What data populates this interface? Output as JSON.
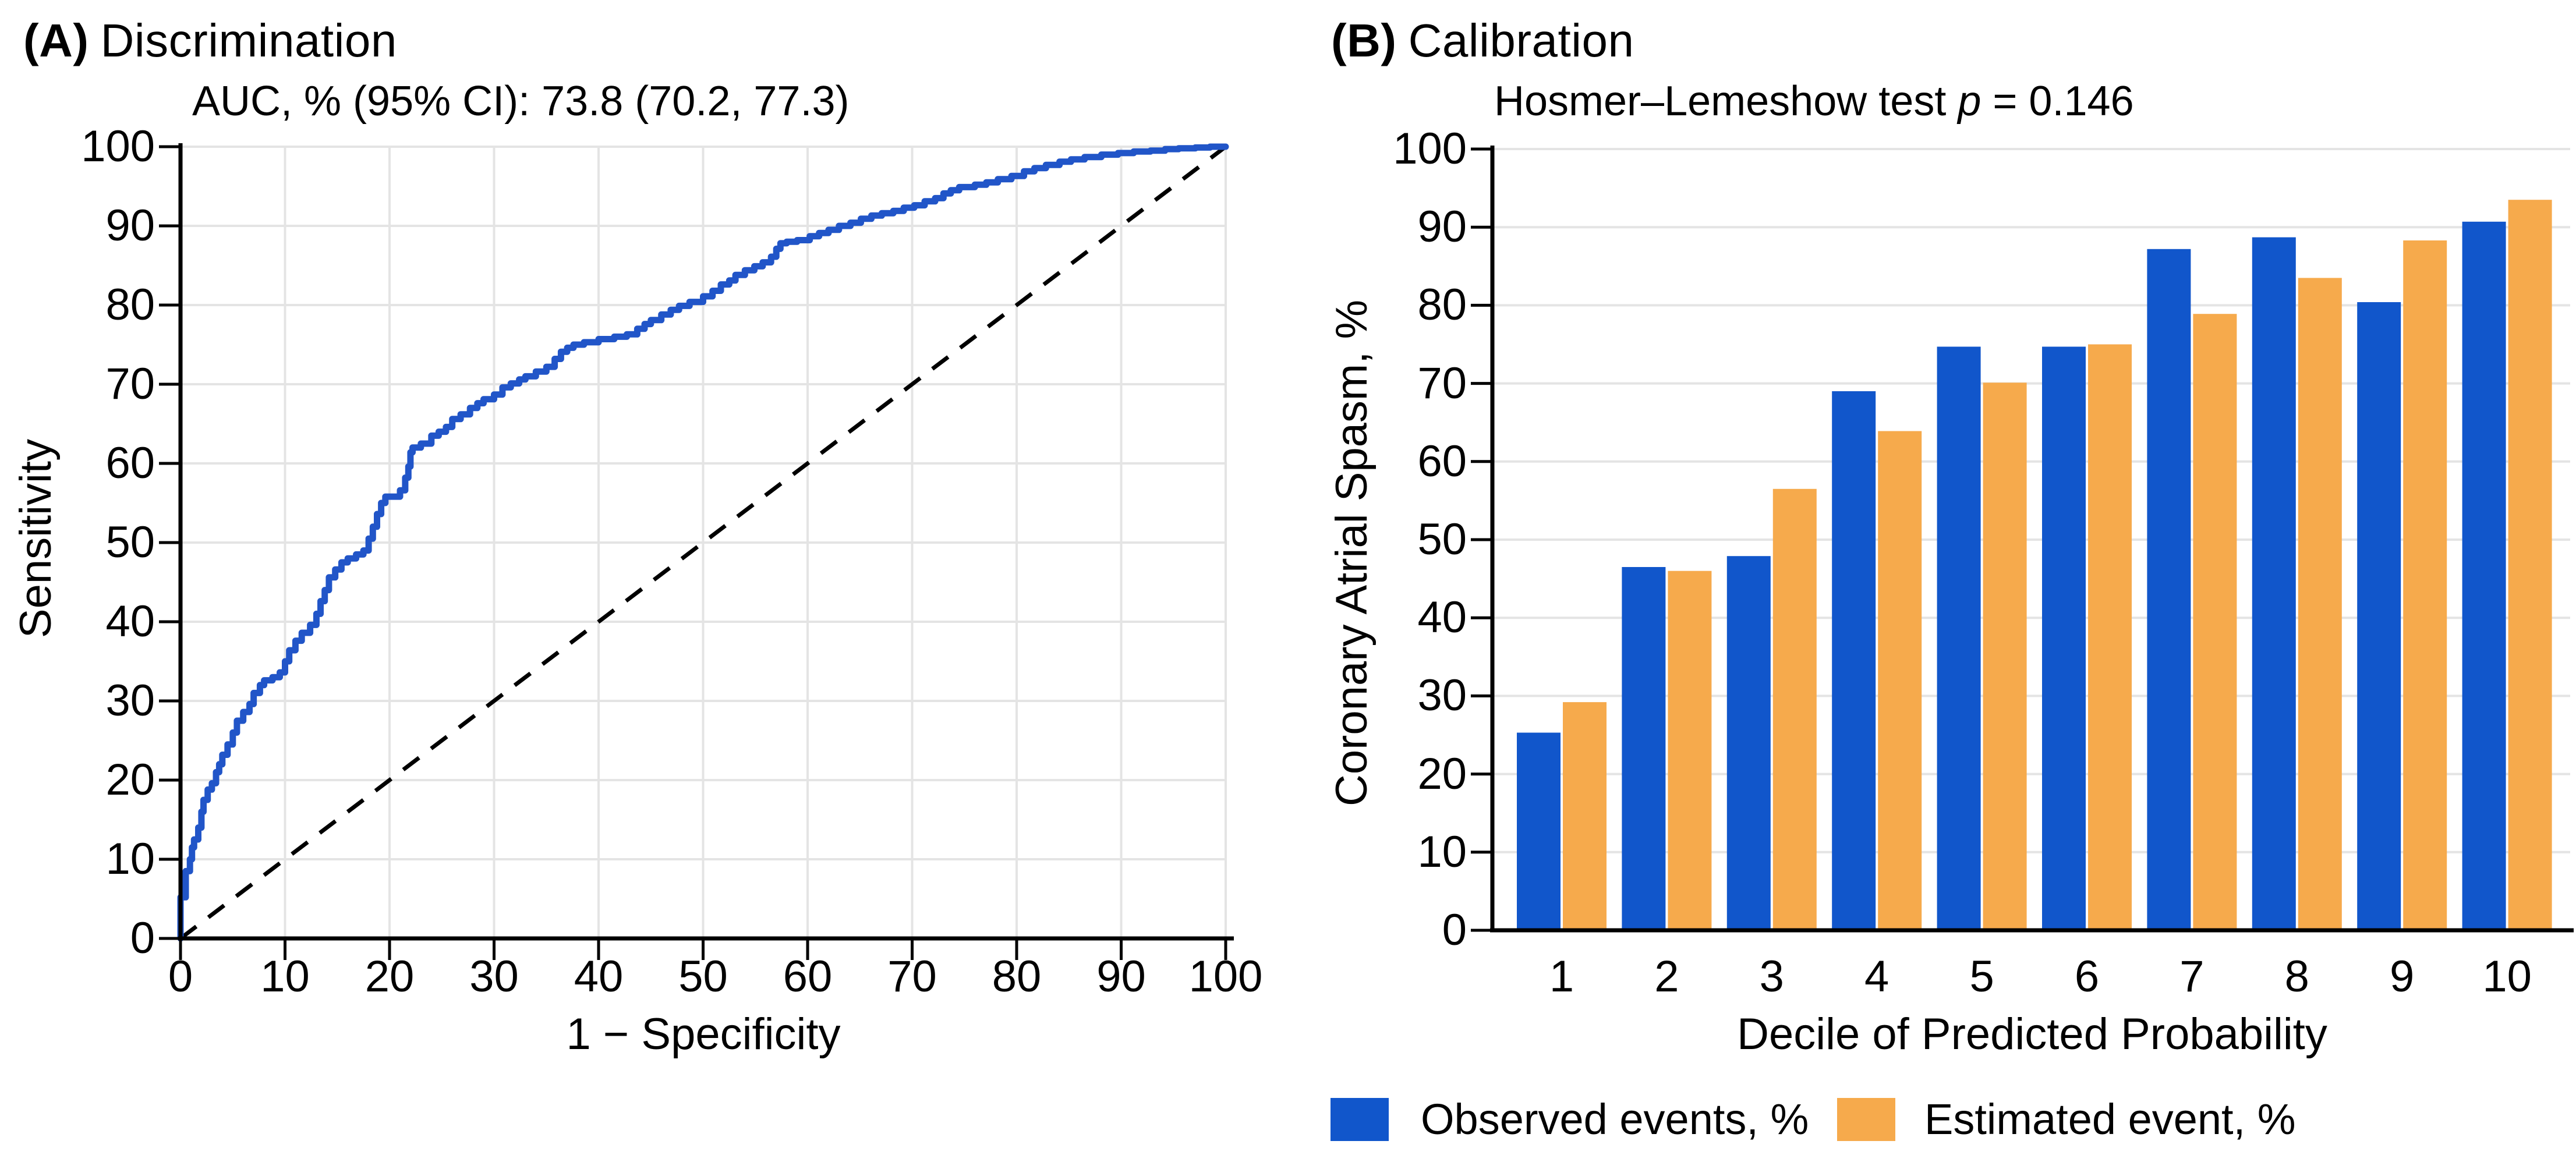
{
  "figure": {
    "panel_a": {
      "title_prefix": "(A)",
      "title": "Discrimination",
      "subtitle": "AUC, % (95% CI): 73.8 (70.2, 77.3)",
      "xlabel": "1 − Specificity",
      "ylabel": "Sensitivity",
      "x_ticks": [
        "0",
        "10",
        "20",
        "30",
        "40",
        "50",
        "60",
        "70",
        "80",
        "90",
        "100"
      ],
      "y_ticks": [
        "0",
        "10",
        "20",
        "30",
        "40",
        "50",
        "60",
        "70",
        "80",
        "90",
        "100"
      ]
    },
    "panel_b": {
      "title_prefix": "(B)",
      "title": "Calibration",
      "subtitle_text": "Hosmer–Lemeshow test ",
      "subtitle_stat": "p",
      "subtitle_value": " = 0.146",
      "xlabel": "Decile of Predicted Probability",
      "ylabel": "Coronary Atrial Spasm, %",
      "x_ticks": [
        "1",
        "2",
        "3",
        "4",
        "5",
        "6",
        "7",
        "8",
        "9",
        "10"
      ],
      "y_ticks": [
        "0",
        "10",
        "20",
        "30",
        "40",
        "50",
        "60",
        "70",
        "80",
        "90",
        "100"
      ]
    },
    "legend": [
      {
        "label": "Observed events, %",
        "color": "#1156CB"
      },
      {
        "label": "Estimated event, %",
        "color": "#F6AA4C"
      }
    ]
  },
  "colors": {
    "roc_line": "#2155C8",
    "observed_bar": "#1156CB",
    "estimated_bar": "#F6AA4C",
    "gridline": "#E4E4E4",
    "axis": "#000000",
    "reference_line": "#000000",
    "background": "#FFFFFF",
    "text": "#000000"
  },
  "chart_data": [
    {
      "type": "line",
      "title": "(A) Discrimination",
      "subtitle": "AUC, % (95% CI): 73.8 (70.2, 77.3)",
      "auc_percent": 73.8,
      "auc_ci_95": [
        70.2,
        77.3
      ],
      "xlabel": "1 − Specificity",
      "ylabel": "Sensitivity",
      "xlim": [
        0,
        100
      ],
      "ylim": [
        0,
        100
      ],
      "grid": true,
      "series": [
        {
          "name": "ROC curve",
          "style": "step",
          "color": "#2155C8",
          "points": [
            [
              0,
              0
            ],
            [
              0,
              4.8
            ],
            [
              0.5,
              5.2
            ],
            [
              0.5,
              7.5
            ],
            [
              0.9,
              8.5
            ],
            [
              1.1,
              10
            ],
            [
              1.3,
              11.5
            ],
            [
              1.7,
              12.5
            ],
            [
              2,
              14
            ],
            [
              2.2,
              16
            ],
            [
              2.6,
              17.5
            ],
            [
              3,
              18.8
            ],
            [
              3.4,
              19.6
            ],
            [
              3.7,
              21
            ],
            [
              4,
              22
            ],
            [
              4.5,
              23.2
            ],
            [
              5,
              24.5
            ],
            [
              5.4,
              26
            ],
            [
              6,
              27.5
            ],
            [
              6.6,
              28.6
            ],
            [
              7,
              29.6
            ],
            [
              7.6,
              31
            ],
            [
              8,
              32
            ],
            [
              8.8,
              32.6
            ],
            [
              9.5,
              33
            ],
            [
              10,
              33.6
            ],
            [
              10.4,
              35
            ],
            [
              11,
              36.4
            ],
            [
              11.6,
              37.6
            ],
            [
              12.4,
              38.6
            ],
            [
              13,
              39.6
            ],
            [
              13.4,
              41
            ],
            [
              13.8,
              42.6
            ],
            [
              14.2,
              44
            ],
            [
              14.8,
              45.6
            ],
            [
              15.4,
              46.6
            ],
            [
              16,
              47.5
            ],
            [
              16.8,
              48
            ],
            [
              17.5,
              48.5
            ],
            [
              18,
              49
            ],
            [
              18.4,
              50.5
            ],
            [
              18.8,
              52
            ],
            [
              19.2,
              53.6
            ],
            [
              19.6,
              55
            ],
            [
              20,
              55.8
            ],
            [
              21,
              55.8
            ],
            [
              21.5,
              56.6
            ],
            [
              21.8,
              58.2
            ],
            [
              22,
              59.6
            ],
            [
              22.2,
              61.4
            ],
            [
              23,
              62
            ],
            [
              24,
              62.5
            ],
            [
              24.7,
              63.5
            ],
            [
              25.4,
              64
            ],
            [
              26,
              64.6
            ],
            [
              26.8,
              65.6
            ],
            [
              27.7,
              66.2
            ],
            [
              28.4,
              67
            ],
            [
              29,
              67.6
            ],
            [
              30,
              68.1
            ],
            [
              30.8,
              68.7
            ],
            [
              31.6,
              69.6
            ],
            [
              32.4,
              70.1
            ],
            [
              33,
              70.6
            ],
            [
              34,
              71
            ],
            [
              35,
              71.6
            ],
            [
              35.8,
              72.2
            ],
            [
              36.4,
              73.2
            ],
            [
              37,
              74.1
            ],
            [
              37.6,
              74.6
            ],
            [
              38.6,
              75
            ],
            [
              40,
              75.3
            ],
            [
              41.5,
              75.7
            ],
            [
              42.7,
              76
            ],
            [
              43.7,
              76.3
            ],
            [
              44.4,
              77
            ],
            [
              45,
              77.6
            ],
            [
              46,
              78.1
            ],
            [
              46.9,
              78.8
            ],
            [
              47.7,
              79.4
            ],
            [
              48.7,
              79.9
            ],
            [
              50,
              80.4
            ],
            [
              50.9,
              81.1
            ],
            [
              51.7,
              81.8
            ],
            [
              52.5,
              82.6
            ],
            [
              53.1,
              83.1
            ],
            [
              54,
              83.8
            ],
            [
              54.9,
              84.4
            ],
            [
              55.7,
              84.9
            ],
            [
              56.5,
              85.4
            ],
            [
              57,
              86.1
            ],
            [
              57.4,
              87.1
            ],
            [
              58,
              87.8
            ],
            [
              59,
              88
            ],
            [
              60.2,
              88.2
            ],
            [
              61.1,
              88.7
            ],
            [
              62,
              89.1
            ],
            [
              63,
              89.5
            ],
            [
              64.1,
              90
            ],
            [
              65.1,
              90.4
            ],
            [
              66.1,
              90.9
            ],
            [
              67.1,
              91.3
            ],
            [
              68.2,
              91.6
            ],
            [
              69.2,
              91.9
            ],
            [
              70.2,
              92.3
            ],
            [
              71.2,
              92.6
            ],
            [
              72.2,
              93.1
            ],
            [
              73,
              93.5
            ],
            [
              73.7,
              94.1
            ],
            [
              74.5,
              94.5
            ],
            [
              76,
              94.9
            ],
            [
              77.1,
              95.2
            ],
            [
              78.2,
              95.5
            ],
            [
              79.5,
              95.9
            ],
            [
              80.7,
              96.3
            ],
            [
              81.7,
              96.9
            ],
            [
              82.8,
              97.3
            ],
            [
              84.1,
              97.7
            ],
            [
              85.2,
              98.1
            ],
            [
              86.5,
              98.4
            ],
            [
              88.1,
              98.7
            ],
            [
              89.7,
              99
            ],
            [
              91.2,
              99.2
            ],
            [
              92.8,
              99.4
            ],
            [
              94.2,
              99.5
            ],
            [
              95.5,
              99.7
            ],
            [
              97.1,
              99.8
            ],
            [
              98.5,
              99.9
            ],
            [
              100,
              100
            ]
          ]
        },
        {
          "name": "Reference diagonal",
          "style": "dashed",
          "color": "#000000",
          "points": [
            [
              0,
              0
            ],
            [
              100,
              100
            ]
          ]
        }
      ]
    },
    {
      "type": "bar",
      "title": "(B) Calibration",
      "subtitle": "Hosmer–Lemeshow test p = 0.146",
      "hosmer_lemeshow_p": 0.146,
      "xlabel": "Decile of Predicted Probability",
      "ylabel": "Coronary Atrial Spasm, %",
      "ylim": [
        0,
        100
      ],
      "grid": true,
      "legend_position": "bottom",
      "categories": [
        1,
        2,
        3,
        4,
        5,
        6,
        7,
        8,
        9,
        10
      ],
      "series": [
        {
          "name": "Observed events, %",
          "color": "#1156CB",
          "values": [
            25.3,
            46.5,
            47.9,
            69.0,
            74.7,
            74.7,
            87.2,
            88.7,
            80.4,
            90.7
          ]
        },
        {
          "name": "Estimated event, %",
          "color": "#F6AA4C",
          "values": [
            29.2,
            46.0,
            56.5,
            63.9,
            70.1,
            75.0,
            78.9,
            83.5,
            88.3,
            93.5
          ]
        }
      ]
    }
  ]
}
